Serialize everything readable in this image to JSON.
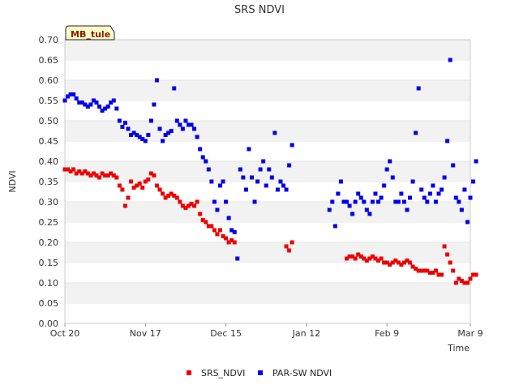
{
  "chart_data": {
    "type": "scatter",
    "title": "SRS NDVI",
    "xlabel": "Time",
    "ylabel": "NDVI",
    "annotation": "MB_tule",
    "x_range": [
      "2019-10-20",
      "2020-03-09"
    ],
    "x_ticks": [
      {
        "date": "2019-10-20",
        "label": "Oct 20"
      },
      {
        "date": "2019-11-17",
        "label": "Nov 17"
      },
      {
        "date": "2019-12-15",
        "label": "Dec 15"
      },
      {
        "date": "2020-01-12",
        "label": "Jan 12"
      },
      {
        "date": "2020-02-09",
        "label": "Feb 9"
      },
      {
        "date": "2020-03-09",
        "label": "Mar 9"
      }
    ],
    "y_range": [
      0.0,
      0.7
    ],
    "y_ticks": [
      "0.00",
      "0.05",
      "0.10",
      "0.15",
      "0.20",
      "0.25",
      "0.30",
      "0.35",
      "0.40",
      "0.45",
      "0.50",
      "0.55",
      "0.60",
      "0.65",
      "0.70"
    ],
    "grid": "horizontal-bands",
    "legend_position": "bottom-center",
    "series": [
      {
        "name": "SRS_NDVI",
        "color": "#ee0000",
        "points": [
          [
            0,
            0.38
          ],
          [
            1,
            0.38
          ],
          [
            2,
            0.375
          ],
          [
            3,
            0.38
          ],
          [
            4,
            0.37
          ],
          [
            5,
            0.375
          ],
          [
            6,
            0.37
          ],
          [
            7,
            0.375
          ],
          [
            8,
            0.37
          ],
          [
            9,
            0.365
          ],
          [
            10,
            0.37
          ],
          [
            11,
            0.365
          ],
          [
            12,
            0.36
          ],
          [
            13,
            0.37
          ],
          [
            14,
            0.365
          ],
          [
            15,
            0.365
          ],
          [
            16,
            0.37
          ],
          [
            17,
            0.365
          ],
          [
            18,
            0.36
          ],
          [
            19,
            0.34
          ],
          [
            20,
            0.33
          ],
          [
            21,
            0.29
          ],
          [
            22,
            0.31
          ],
          [
            23,
            0.35
          ],
          [
            24,
            0.335
          ],
          [
            25,
            0.34
          ],
          [
            26,
            0.345
          ],
          [
            27,
            0.335
          ],
          [
            28,
            0.35
          ],
          [
            29,
            0.355
          ],
          [
            30,
            0.37
          ],
          [
            31,
            0.365
          ],
          [
            32,
            0.34
          ],
          [
            33,
            0.33
          ],
          [
            34,
            0.32
          ],
          [
            35,
            0.31
          ],
          [
            36,
            0.315
          ],
          [
            37,
            0.32
          ],
          [
            38,
            0.315
          ],
          [
            39,
            0.31
          ],
          [
            40,
            0.3
          ],
          [
            41,
            0.29
          ],
          [
            42,
            0.285
          ],
          [
            43,
            0.29
          ],
          [
            44,
            0.295
          ],
          [
            45,
            0.29
          ],
          [
            46,
            0.3
          ],
          [
            47,
            0.27
          ],
          [
            48,
            0.255
          ],
          [
            49,
            0.25
          ],
          [
            50,
            0.24
          ],
          [
            51,
            0.24
          ],
          [
            52,
            0.23
          ],
          [
            53,
            0.22
          ],
          [
            54,
            0.23
          ],
          [
            55,
            0.215
          ],
          [
            56,
            0.21
          ],
          [
            57,
            0.2
          ],
          [
            58,
            0.205
          ],
          [
            59,
            0.2
          ],
          [
            77,
            0.19
          ],
          [
            78,
            0.18
          ],
          [
            79,
            0.2
          ],
          [
            98,
            0.16
          ],
          [
            99,
            0.165
          ],
          [
            100,
            0.165
          ],
          [
            101,
            0.16
          ],
          [
            102,
            0.17
          ],
          [
            103,
            0.165
          ],
          [
            104,
            0.16
          ],
          [
            105,
            0.155
          ],
          [
            106,
            0.16
          ],
          [
            107,
            0.165
          ],
          [
            108,
            0.16
          ],
          [
            109,
            0.155
          ],
          [
            110,
            0.16
          ],
          [
            111,
            0.15
          ],
          [
            112,
            0.15
          ],
          [
            113,
            0.145
          ],
          [
            114,
            0.15
          ],
          [
            115,
            0.155
          ],
          [
            116,
            0.15
          ],
          [
            117,
            0.145
          ],
          [
            118,
            0.15
          ],
          [
            119,
            0.155
          ],
          [
            120,
            0.15
          ],
          [
            121,
            0.14
          ],
          [
            122,
            0.135
          ],
          [
            123,
            0.13
          ],
          [
            124,
            0.13
          ],
          [
            125,
            0.13
          ],
          [
            126,
            0.13
          ],
          [
            127,
            0.125
          ],
          [
            128,
            0.125
          ],
          [
            129,
            0.13
          ],
          [
            130,
            0.12
          ],
          [
            131,
            0.12
          ],
          [
            132,
            0.19
          ],
          [
            133,
            0.17
          ],
          [
            134,
            0.15
          ],
          [
            135,
            0.13
          ],
          [
            136,
            0.1
          ],
          [
            137,
            0.11
          ],
          [
            138,
            0.105
          ],
          [
            139,
            0.1
          ],
          [
            140,
            0.1
          ],
          [
            141,
            0.11
          ],
          [
            142,
            0.12
          ],
          [
            143,
            0.12
          ]
        ]
      },
      {
        "name": "PAR-SW NDVI",
        "color": "#0000ee",
        "points": [
          [
            0,
            0.55
          ],
          [
            1,
            0.56
          ],
          [
            2,
            0.565
          ],
          [
            3,
            0.565
          ],
          [
            4,
            0.555
          ],
          [
            5,
            0.545
          ],
          [
            6,
            0.545
          ],
          [
            7,
            0.54
          ],
          [
            8,
            0.535
          ],
          [
            9,
            0.54
          ],
          [
            10,
            0.55
          ],
          [
            11,
            0.545
          ],
          [
            12,
            0.535
          ],
          [
            13,
            0.525
          ],
          [
            14,
            0.53
          ],
          [
            15,
            0.535
          ],
          [
            16,
            0.545
          ],
          [
            17,
            0.55
          ],
          [
            18,
            0.53
          ],
          [
            19,
            0.5
          ],
          [
            20,
            0.485
          ],
          [
            21,
            0.495
          ],
          [
            22,
            0.48
          ],
          [
            23,
            0.465
          ],
          [
            24,
            0.47
          ],
          [
            25,
            0.465
          ],
          [
            26,
            0.46
          ],
          [
            27,
            0.455
          ],
          [
            28,
            0.45
          ],
          [
            29,
            0.465
          ],
          [
            30,
            0.5
          ],
          [
            31,
            0.54
          ],
          [
            32,
            0.6
          ],
          [
            33,
            0.48
          ],
          [
            34,
            0.45
          ],
          [
            35,
            0.465
          ],
          [
            36,
            0.47
          ],
          [
            37,
            0.475
          ],
          [
            38,
            0.58
          ],
          [
            39,
            0.5
          ],
          [
            40,
            0.49
          ],
          [
            41,
            0.48
          ],
          [
            42,
            0.5
          ],
          [
            43,
            0.49
          ],
          [
            44,
            0.49
          ],
          [
            45,
            0.48
          ],
          [
            46,
            0.46
          ],
          [
            47,
            0.43
          ],
          [
            48,
            0.41
          ],
          [
            49,
            0.4
          ],
          [
            50,
            0.38
          ],
          [
            51,
            0.35
          ],
          [
            52,
            0.3
          ],
          [
            53,
            0.28
          ],
          [
            54,
            0.34
          ],
          [
            55,
            0.35
          ],
          [
            56,
            0.3
          ],
          [
            57,
            0.26
          ],
          [
            58,
            0.23
          ],
          [
            59,
            0.225
          ],
          [
            60,
            0.16
          ],
          [
            61,
            0.38
          ],
          [
            62,
            0.36
          ],
          [
            63,
            0.33
          ],
          [
            64,
            0.43
          ],
          [
            65,
            0.36
          ],
          [
            66,
            0.3
          ],
          [
            67,
            0.35
          ],
          [
            68,
            0.38
          ],
          [
            69,
            0.4
          ],
          [
            70,
            0.34
          ],
          [
            71,
            0.38
          ],
          [
            72,
            0.36
          ],
          [
            73,
            0.47
          ],
          [
            74,
            0.33
          ],
          [
            75,
            0.35
          ],
          [
            76,
            0.34
          ],
          [
            77,
            0.33
          ],
          [
            78,
            0.39
          ],
          [
            79,
            0.44
          ],
          [
            92,
            0.28
          ],
          [
            93,
            0.3
          ],
          [
            94,
            0.24
          ],
          [
            95,
            0.32
          ],
          [
            96,
            0.35
          ],
          [
            97,
            0.3
          ],
          [
            98,
            0.3
          ],
          [
            99,
            0.29
          ],
          [
            100,
            0.27
          ],
          [
            101,
            0.3
          ],
          [
            102,
            0.32
          ],
          [
            103,
            0.31
          ],
          [
            104,
            0.3
          ],
          [
            105,
            0.28
          ],
          [
            106,
            0.27
          ],
          [
            107,
            0.3
          ],
          [
            108,
            0.32
          ],
          [
            109,
            0.3
          ],
          [
            110,
            0.31
          ],
          [
            111,
            0.34
          ],
          [
            112,
            0.38
          ],
          [
            113,
            0.4
          ],
          [
            114,
            0.36
          ],
          [
            115,
            0.3
          ],
          [
            116,
            0.3
          ],
          [
            117,
            0.32
          ],
          [
            118,
            0.3
          ],
          [
            119,
            0.28
          ],
          [
            120,
            0.31
          ],
          [
            121,
            0.35
          ],
          [
            122,
            0.47
          ],
          [
            123,
            0.58
          ],
          [
            124,
            0.33
          ],
          [
            125,
            0.31
          ],
          [
            126,
            0.3
          ],
          [
            127,
            0.32
          ],
          [
            128,
            0.34
          ],
          [
            129,
            0.3
          ],
          [
            130,
            0.32
          ],
          [
            131,
            0.33
          ],
          [
            132,
            0.36
          ],
          [
            133,
            0.45
          ],
          [
            134,
            0.65
          ],
          [
            135,
            0.39
          ],
          [
            136,
            0.31
          ],
          [
            137,
            0.3
          ],
          [
            138,
            0.28
          ],
          [
            139,
            0.33
          ],
          [
            140,
            0.25
          ],
          [
            141,
            0.31
          ],
          [
            142,
            0.35
          ],
          [
            143,
            0.4
          ]
        ]
      }
    ]
  }
}
